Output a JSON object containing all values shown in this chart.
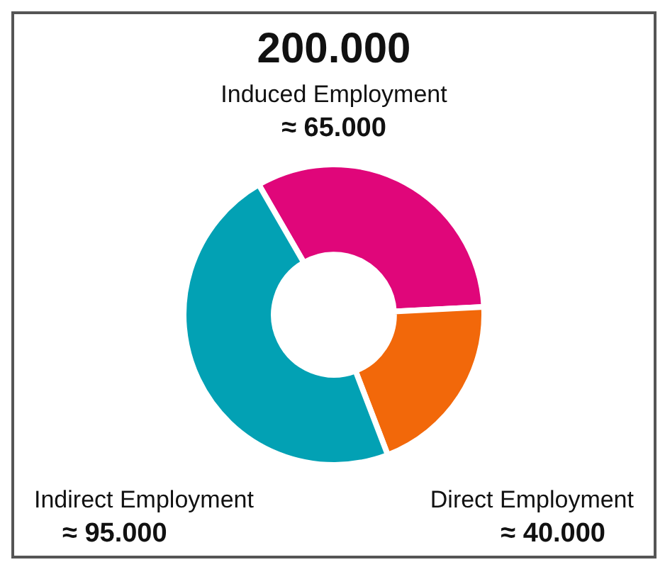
{
  "chart_data": {
    "type": "donut",
    "title": "200.000",
    "categories": [
      "Induced Employment",
      "Direct Employment",
      "Indirect Employment"
    ],
    "values": [
      65000,
      40000,
      95000
    ],
    "colors": [
      "#e0067a",
      "#f2680a",
      "#02a1b4"
    ],
    "value_labels": [
      "≈ 65.000",
      "≈ 40.000",
      "≈ 95.000"
    ],
    "legend": false
  }
}
